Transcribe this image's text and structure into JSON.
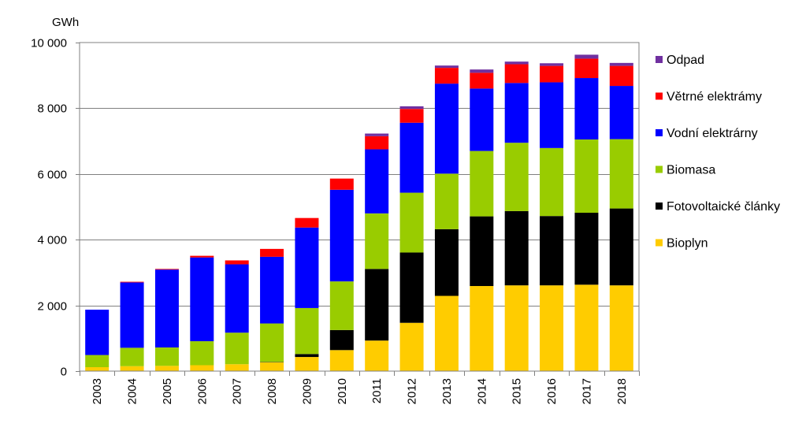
{
  "chart_data": {
    "type": "bar",
    "stacked": true,
    "unit_label": "GWh",
    "categories": [
      "2003",
      "2004",
      "2005",
      "2006",
      "2007",
      "2008",
      "2009",
      "2010",
      "2011",
      "2012",
      "2013",
      "2014",
      "2015",
      "2016",
      "2017",
      "2018"
    ],
    "ylim": [
      0,
      10000
    ],
    "yticks": [
      0,
      2000,
      4000,
      6000,
      8000,
      10000
    ],
    "ytick_labels": [
      "0",
      "2 000",
      "4 000",
      "6 000",
      "8 000",
      "10 000"
    ],
    "grid": true,
    "legend_position": "right",
    "series": [
      {
        "name": "Bioplyn",
        "color": "#ffcc00",
        "values": [
          120,
          150,
          160,
          180,
          210,
          270,
          430,
          640,
          930,
          1470,
          2290,
          2590,
          2610,
          2610,
          2630,
          2610
        ]
      },
      {
        "name": "Fotovoltaické články",
        "color": "#000000",
        "values": [
          0,
          0,
          0,
          0,
          0,
          10,
          90,
          610,
          2180,
          2140,
          2030,
          2120,
          2260,
          2110,
          2190,
          2340
        ]
      },
      {
        "name": "Biomasa",
        "color": "#99cc00",
        "values": [
          370,
          560,
          560,
          730,
          960,
          1170,
          1400,
          1480,
          1690,
          1820,
          1690,
          1990,
          2080,
          2070,
          2230,
          2110
        ]
      },
      {
        "name": "Vodní elektrárny",
        "color": "#0000ff",
        "values": [
          1380,
          1990,
          2370,
          2550,
          2080,
          2030,
          2450,
          2790,
          1950,
          2130,
          2740,
          1900,
          1820,
          2000,
          1870,
          1620
        ]
      },
      {
        "name": "Větrné elektrámy",
        "color": "#ff0000",
        "values": [
          0,
          20,
          20,
          50,
          120,
          240,
          290,
          340,
          400,
          420,
          480,
          480,
          570,
          500,
          590,
          610
        ]
      },
      {
        "name": "Odpad",
        "color": "#7030a0",
        "values": [
          0,
          0,
          0,
          0,
          0,
          0,
          0,
          0,
          80,
          80,
          70,
          100,
          80,
          80,
          120,
          90
        ]
      }
    ],
    "legend_order": [
      "Odpad",
      "Větrné elektrámy",
      "Vodní elektrárny",
      "Biomasa",
      "Fotovoltaické články",
      "Bioplyn"
    ]
  }
}
